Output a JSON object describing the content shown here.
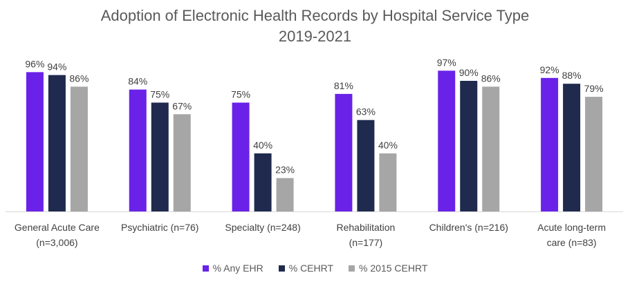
{
  "chart_data": {
    "type": "bar",
    "title": "Adoption of Electronic Health Records by Hospital Service Type",
    "subtitle": "2019-2021",
    "categories": [
      [
        "General Acute Care",
        "(n=3,006)"
      ],
      [
        "Psychiatric (n=76)"
      ],
      [
        "Specialty (n=248)"
      ],
      [
        "Rehabilitation",
        "(n=177)"
      ],
      [
        "Children's (n=216)"
      ],
      [
        "Acute long-term",
        "care (n=83)"
      ]
    ],
    "series": [
      {
        "name": "% Any EHR",
        "color": "#6a22e8",
        "values": [
          96,
          84,
          75,
          81,
          97,
          92
        ],
        "labels": [
          "96%",
          "84%",
          "75%",
          "81%",
          "97%",
          "92%"
        ]
      },
      {
        "name": "% CEHRT",
        "color": "#1f2a4e",
        "values": [
          94,
          75,
          40,
          63,
          90,
          88
        ],
        "labels": [
          "94%",
          "75%",
          "40%",
          "63%",
          "90%",
          "88%"
        ]
      },
      {
        "name": "% 2015 CEHRT",
        "color": "#a6a6a6",
        "values": [
          86,
          67,
          23,
          40,
          86,
          79
        ],
        "labels": [
          "86%",
          "67%",
          "23%",
          "40%",
          "86%",
          "79%"
        ]
      }
    ],
    "ylim": [
      0,
      100
    ],
    "grid": false,
    "legend_position": "bottom"
  }
}
